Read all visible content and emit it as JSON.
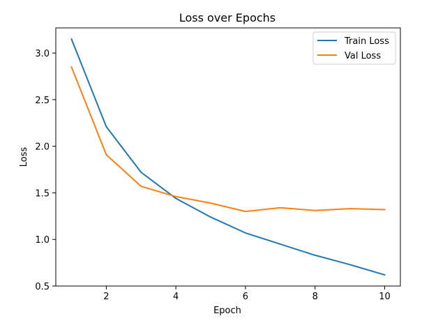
{
  "chart_data": {
    "type": "line",
    "title": "Loss over Epochs",
    "xlabel": "Epoch",
    "ylabel": "Loss",
    "x": [
      1,
      2,
      3,
      4,
      5,
      6,
      7,
      8,
      9,
      10
    ],
    "xlim": [
      0.55,
      10.45
    ],
    "ylim": [
      0.5,
      3.27
    ],
    "xticks": [
      2,
      4,
      6,
      8,
      10
    ],
    "yticks": [
      0.5,
      1.0,
      1.5,
      2.0,
      2.5,
      3.0
    ],
    "xtick_labels": [
      "2",
      "4",
      "6",
      "8",
      "10"
    ],
    "ytick_labels": [
      "0.5",
      "1.0",
      "1.5",
      "2.0",
      "2.5",
      "3.0"
    ],
    "grid": false,
    "legend_position": "top-right",
    "series": [
      {
        "name": "Train Loss",
        "color": "#1f77b4",
        "values": [
          3.15,
          2.21,
          1.72,
          1.44,
          1.24,
          1.07,
          0.95,
          0.83,
          0.73,
          0.62
        ]
      },
      {
        "name": "Val Loss",
        "color": "#ff7f0e",
        "values": [
          2.85,
          1.91,
          1.57,
          1.46,
          1.39,
          1.3,
          1.34,
          1.31,
          1.33,
          1.32
        ]
      }
    ]
  }
}
